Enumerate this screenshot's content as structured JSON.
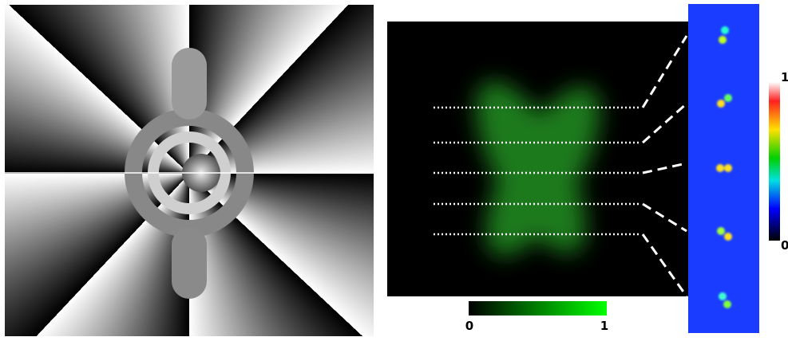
{
  "green_colorbar": {
    "min_label": "0",
    "max_label": "1"
  },
  "rainbow_colorbar": {
    "max_label": "1",
    "min_label": "0"
  }
}
